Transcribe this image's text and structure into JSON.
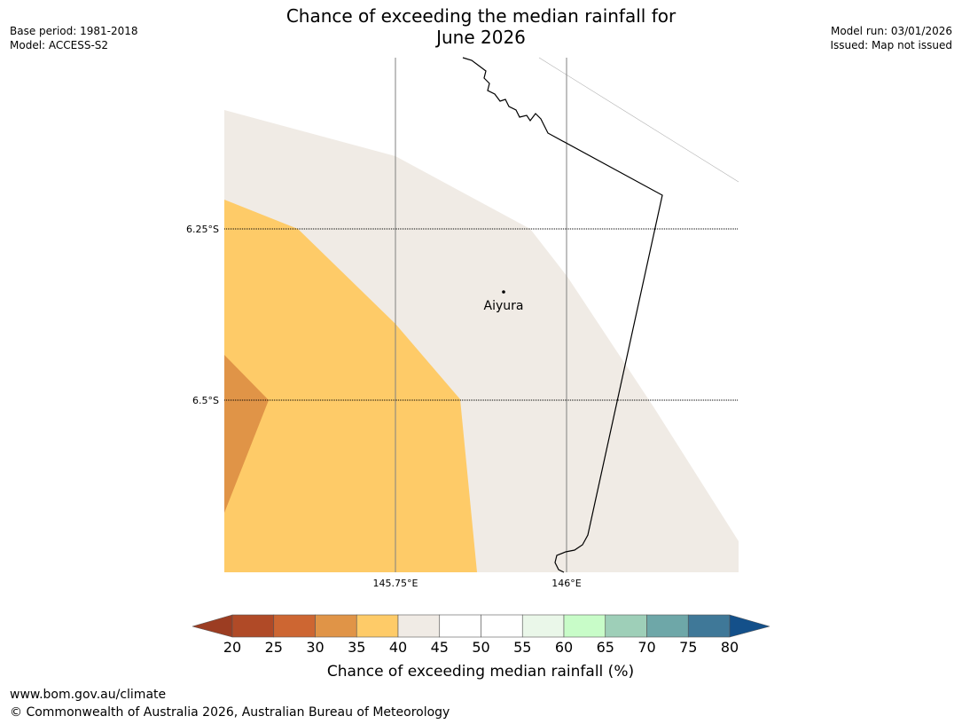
{
  "header": {
    "title_line1": "Chance of exceeding the median rainfall for",
    "title_line2": "June 2026",
    "base_period": "Base period: 1981-2018",
    "model": "Model: ACCESS-S2",
    "model_run": "Model run: 03/01/2026",
    "issued": "Issued: Map not issued"
  },
  "map": {
    "lat_labels": [
      "6.25°S",
      "6.5°S"
    ],
    "lon_labels": [
      "145.75°E",
      "146°E"
    ],
    "place": "Aiyura",
    "region_values_percent": [
      30,
      35,
      40
    ]
  },
  "colorbar": {
    "label": "Chance of exceeding median rainfall (%)",
    "ticks": [
      "20",
      "25",
      "30",
      "35",
      "40",
      "45",
      "50",
      "55",
      "60",
      "65",
      "70",
      "75",
      "80"
    ],
    "under_color": "#9c3d22",
    "over_color": "#14508a",
    "colors": [
      "#b04a27",
      "#cd6632",
      "#e09447",
      "#fecb68",
      "#f0ebe5",
      "#ffffff",
      "#ffffff",
      "#eaf7e9",
      "#c8fcc8",
      "#9ecfb8",
      "#6ea7a8",
      "#3f7898"
    ]
  },
  "footer": {
    "url": "www.bom.gov.au/climate",
    "copyright": "© Commonwealth of Australia 2026, Australian Bureau of Meteorology"
  }
}
